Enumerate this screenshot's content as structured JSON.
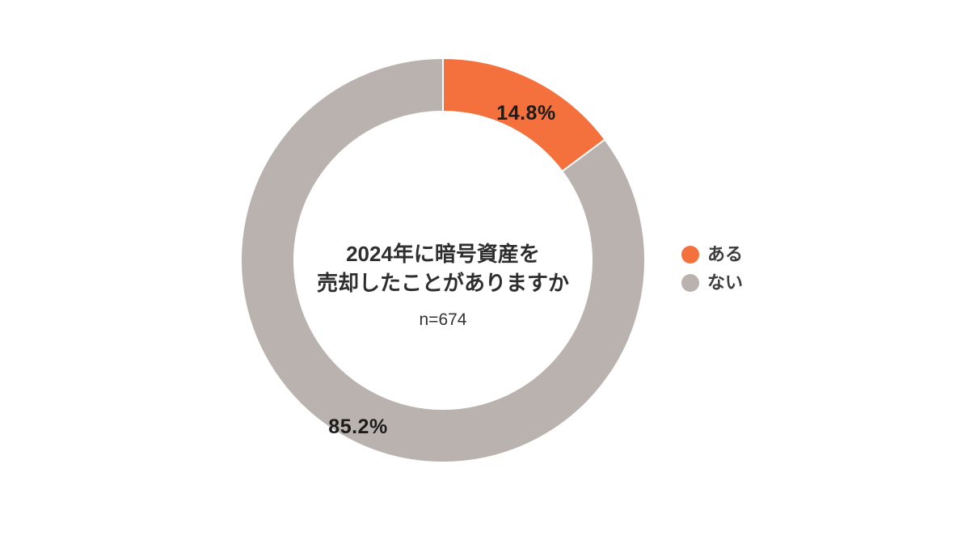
{
  "chart_data": {
    "type": "pie",
    "donut": true,
    "title": "2024年に暗号資産を売却したことがありますか",
    "title_lines": [
      "2024年に暗号資産を",
      "売却したことがありますか"
    ],
    "sample_label": "n=674",
    "start_angle_deg": 0,
    "direction": "clockwise",
    "legend_position": "right",
    "background_color": "#FFFFFF",
    "text_color": "#2E2E2E",
    "series": [
      {
        "name": "ある",
        "value": 14.8,
        "label": "14.8%",
        "color": "#F4703C"
      },
      {
        "name": "ない",
        "value": 85.2,
        "label": "85.2%",
        "color": "#B9B2AE"
      }
    ]
  }
}
